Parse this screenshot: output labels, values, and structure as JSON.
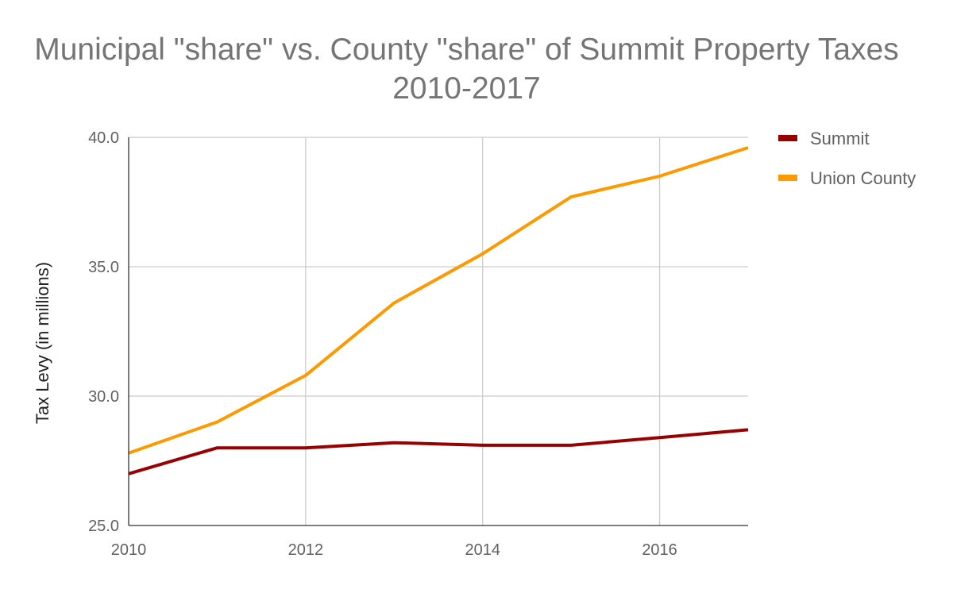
{
  "chart_data": {
    "type": "line",
    "title_lines": [
      "Municipal \"share\" vs. County \"share\" of Summit Property Taxes",
      "2010-2017"
    ],
    "xlabel": "",
    "ylabel": "Tax Levy (in millions)",
    "x": [
      2010,
      2011,
      2012,
      2013,
      2014,
      2015,
      2016,
      2017
    ],
    "xlim": [
      2010,
      2017
    ],
    "ylim": [
      25,
      40
    ],
    "y_ticks": [
      {
        "value": 25,
        "label": "25.0"
      },
      {
        "value": 30,
        "label": "30.0"
      },
      {
        "value": 35,
        "label": "35.0"
      },
      {
        "value": 40,
        "label": "40.0"
      }
    ],
    "x_ticks": [
      {
        "value": 2010,
        "label": "2010"
      },
      {
        "value": 2012,
        "label": "2012"
      },
      {
        "value": 2014,
        "label": "2014"
      },
      {
        "value": 2016,
        "label": "2016"
      }
    ],
    "grid": true,
    "legend_position": "right",
    "series": [
      {
        "name": "Summit",
        "color": "#990000",
        "values": [
          27.0,
          28.0,
          28.0,
          28.2,
          28.1,
          28.1,
          28.4,
          28.7
        ]
      },
      {
        "name": "Union County",
        "color": "#ff9900",
        "values": [
          27.8,
          29.0,
          30.8,
          33.6,
          35.5,
          37.7,
          38.5,
          39.6
        ]
      }
    ]
  }
}
